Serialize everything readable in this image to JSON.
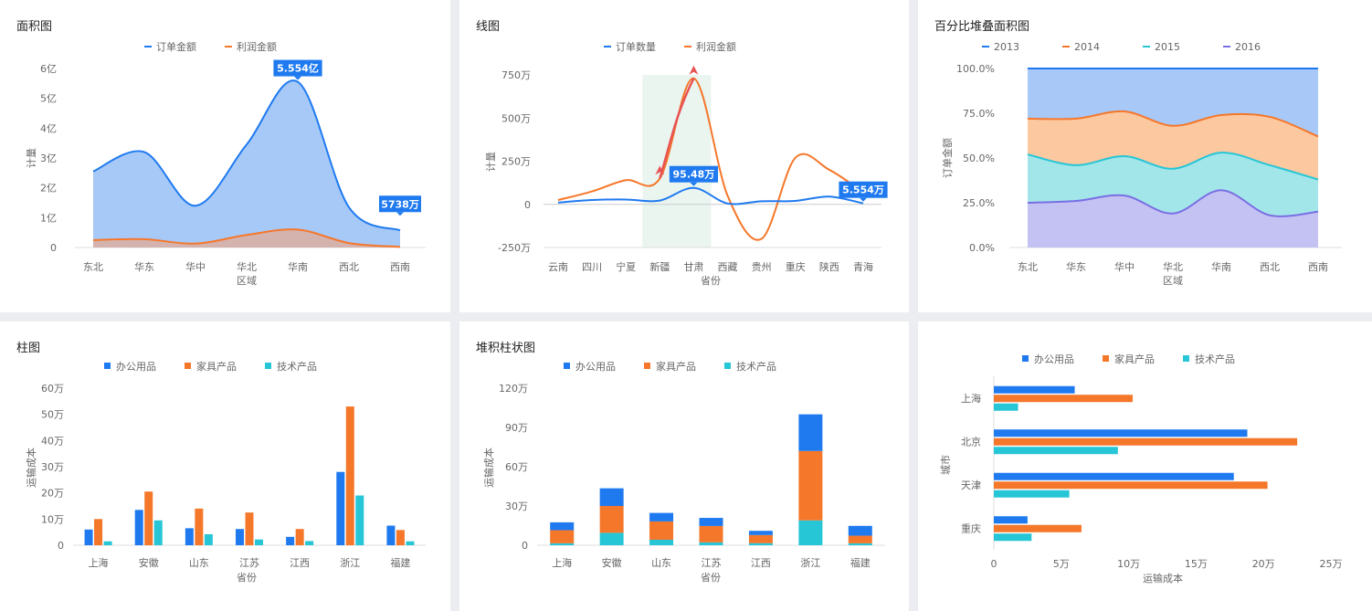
{
  "colors": {
    "blue": "#1f7af0",
    "orange": "#f5772a",
    "cyan": "#26c6d6",
    "purple": "#7a6fe3"
  },
  "chart_data": [
    {
      "id": "area",
      "type": "area",
      "title": "面积图",
      "xlabel": "区域",
      "ylabel": "计量",
      "categories": [
        "东北",
        "华东",
        "华中",
        "华北",
        "华南",
        "西北",
        "西南"
      ],
      "series": [
        {
          "name": "订单金额",
          "values": [
            2.55,
            3.2,
            1.4,
            3.45,
            5.554,
            1.35,
            0.5738
          ]
        },
        {
          "name": "利润金额",
          "values": [
            0.25,
            0.28,
            0.13,
            0.42,
            0.6,
            0.15,
            0.02
          ]
        }
      ],
      "ylim": [
        0,
        6
      ],
      "yticks": [
        "0",
        "1亿",
        "2亿",
        "3亿",
        "4亿",
        "5亿",
        "6亿"
      ],
      "annotations": [
        "5.554亿",
        "5738万"
      ],
      "legend": "top"
    },
    {
      "id": "line",
      "type": "line",
      "title": "线图",
      "xlabel": "省份",
      "ylabel": "计量",
      "categories": [
        "云南",
        "四川",
        "宁夏",
        "新疆",
        "甘肃",
        "西藏",
        "贵州",
        "重庆",
        "陕西",
        "青海"
      ],
      "series": [
        {
          "name": "订单数量",
          "values": [
            10,
            25,
            28,
            22,
            95.48,
            5,
            18,
            20,
            45,
            5.554
          ]
        },
        {
          "name": "利润金额",
          "values": [
            25,
            75,
            140,
            150,
            730,
            50,
            -200,
            270,
            200,
            70
          ]
        }
      ],
      "ylim": [
        -250,
        750
      ],
      "yticks": [
        "-250万",
        "0",
        "250万",
        "500万",
        "750万"
      ],
      "annotations": [
        "95.48万",
        "5.554万"
      ],
      "legend": "top"
    },
    {
      "id": "stack",
      "type": "area",
      "title": "百分比堆叠面积图",
      "xlabel": "区域",
      "ylabel": "订单金额",
      "categories": [
        "东北",
        "华东",
        "华中",
        "华北",
        "华南",
        "西北",
        "西南"
      ],
      "series": [
        {
          "name": "2013",
          "values": [
            28,
            28,
            24,
            32,
            26,
            27,
            38
          ]
        },
        {
          "name": "2014",
          "values": [
            20,
            26,
            25,
            24,
            21,
            27,
            24
          ]
        },
        {
          "name": "2015",
          "values": [
            27,
            20,
            22,
            25,
            21,
            28,
            18
          ]
        },
        {
          "name": "2016",
          "values": [
            25,
            26,
            29,
            19,
            32,
            18,
            20
          ]
        }
      ],
      "ylim": [
        0,
        100
      ],
      "yticks": [
        "0.0%",
        "25.0%",
        "50.0%",
        "75.0%",
        "100.0%"
      ],
      "legend": "top"
    },
    {
      "id": "bar",
      "type": "bar",
      "title": "柱图",
      "xlabel": "省份",
      "ylabel": "运输成本",
      "categories": [
        "上海",
        "安徽",
        "山东",
        "江苏",
        "江西",
        "浙江",
        "福建"
      ],
      "series": [
        {
          "name": "办公用品",
          "values": [
            6,
            13.5,
            6.5,
            6.2,
            3.2,
            28,
            7.5
          ]
        },
        {
          "name": "家具产品",
          "values": [
            10,
            20.5,
            14,
            12.5,
            6.2,
            53,
            5.8
          ]
        },
        {
          "name": "技术产品",
          "values": [
            1.5,
            9.5,
            4.2,
            2.2,
            1.6,
            19,
            1.5
          ]
        }
      ],
      "ylim": [
        0,
        60
      ],
      "yticks": [
        "0",
        "10万",
        "20万",
        "30万",
        "40万",
        "50万",
        "60万"
      ],
      "legend": "top"
    },
    {
      "id": "stackbar",
      "type": "bar",
      "title": "堆积柱状图",
      "xlabel": "省份",
      "ylabel": "运输成本",
      "categories": [
        "上海",
        "安徽",
        "山东",
        "江苏",
        "江西",
        "浙江",
        "福建"
      ],
      "series": [
        {
          "name": "办公用品",
          "values": [
            6,
            13.5,
            6.5,
            6.2,
            3.2,
            28,
            7.5
          ]
        },
        {
          "name": "家具产品",
          "values": [
            10,
            20.5,
            14,
            12.5,
            6.2,
            53,
            5.8
          ]
        },
        {
          "name": "技术产品",
          "values": [
            1.5,
            9.5,
            4.2,
            2.2,
            1.6,
            19,
            1.5
          ]
        }
      ],
      "ylim": [
        0,
        120
      ],
      "yticks": [
        "0",
        "30万",
        "60万",
        "90万",
        "120万"
      ],
      "legend": "top"
    },
    {
      "id": "hbar",
      "type": "bar",
      "title": "",
      "xlabel": "运输成本",
      "ylabel": "城市",
      "categories": [
        "上海",
        "北京",
        "天津",
        "重庆"
      ],
      "series": [
        {
          "name": "办公用品",
          "values": [
            6,
            18.8,
            17.8,
            2.5
          ]
        },
        {
          "name": "家具产品",
          "values": [
            10.3,
            22.5,
            20.3,
            6.5
          ]
        },
        {
          "name": "技术产品",
          "values": [
            1.8,
            9.2,
            5.6,
            2.8
          ]
        }
      ],
      "xlim": [
        0,
        25
      ],
      "xticks": [
        "0",
        "5万",
        "10万",
        "15万",
        "20万",
        "25万"
      ],
      "legend": "top"
    }
  ]
}
